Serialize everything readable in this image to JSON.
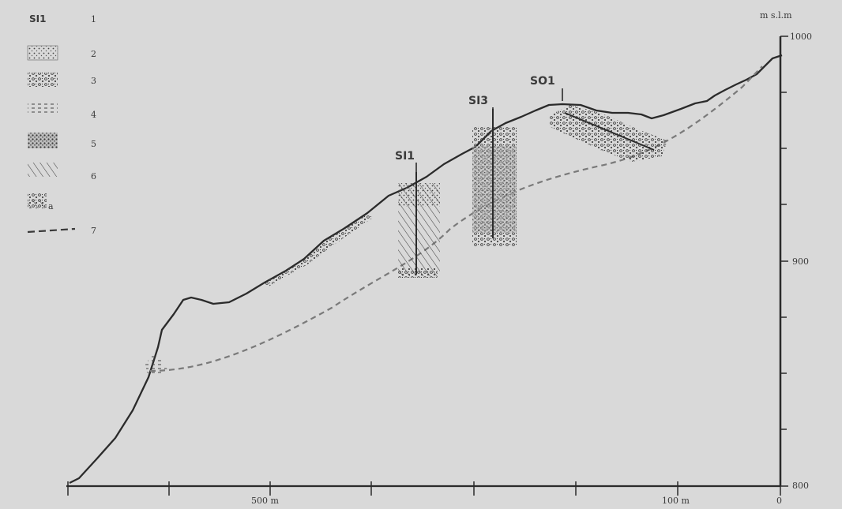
{
  "units_label": "m s.l.m",
  "elevation_ticks": [
    "1000",
    "900",
    "800"
  ],
  "distance_labels": [
    "500 m",
    "100 m",
    "0"
  ],
  "boreholes": [
    {
      "id": "SI1"
    },
    {
      "id": "SI3"
    },
    {
      "id": "SO1"
    }
  ],
  "legend": {
    "borehole_symbol_text": "SI1",
    "items": [
      {
        "number": "1",
        "symbol": "borehole-label"
      },
      {
        "number": "2",
        "symbol": "pattern-dotted"
      },
      {
        "number": "3",
        "symbol": "pattern-gravel"
      },
      {
        "number": "4",
        "symbol": "pattern-dashed"
      },
      {
        "number": "5",
        "symbol": "pattern-dense-gravel"
      },
      {
        "number": "6",
        "symbol": "pattern-wavy"
      },
      {
        "number": "a",
        "symbol": "pattern-wavy-gravel"
      },
      {
        "number": "7",
        "symbol": "sliding-surface-dashed-line"
      }
    ]
  },
  "colors": {
    "background": "#d9d9d9",
    "line": "#2b2b2b",
    "dashed_surface": "#7a7a7a",
    "text": "#3a3a3a"
  }
}
